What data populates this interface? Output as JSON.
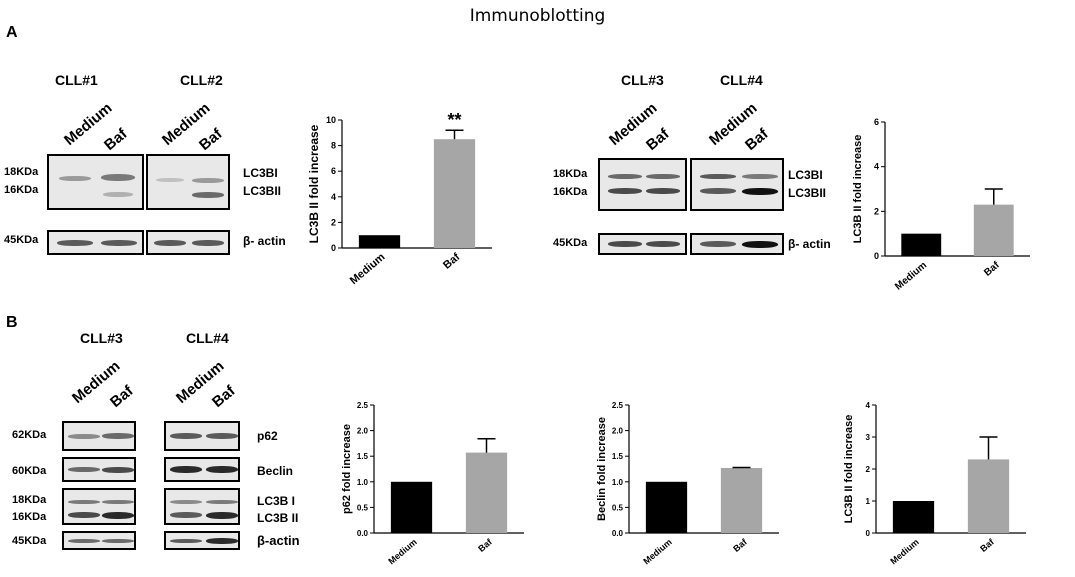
{
  "figure_title": "Immunoblotting",
  "panel_a": {
    "letter": "A",
    "blot_1": {
      "samples": [
        "CLL#1",
        "CLL#2"
      ],
      "lanes": [
        "Medium",
        "Baf"
      ],
      "kda": [
        "18KDa",
        "16KDa",
        "45KDa"
      ],
      "proteins": [
        "LC3BI",
        "LC3BII",
        "β- actin"
      ]
    },
    "blot_2": {
      "samples": [
        "CLL#3",
        "CLL#4"
      ],
      "lanes": [
        "Medium",
        "Baf"
      ],
      "kda": [
        "18KDa",
        "16KDa",
        "45KDa"
      ],
      "proteins": [
        "LC3BI",
        "LC3BII",
        "β- actin"
      ]
    }
  },
  "panel_b": {
    "letter": "B",
    "blot": {
      "samples": [
        "CLL#3",
        "CLL#4"
      ],
      "lanes": [
        "Medium",
        "Baf"
      ],
      "kda": [
        "62KDa",
        "60KDa",
        "18KDa",
        "16KDa",
        "45KDa"
      ],
      "proteins": [
        "p62",
        "Beclin",
        "LC3B I",
        "LC3B II",
        "β-actin"
      ]
    }
  },
  "colors": {
    "medium": "#000000",
    "baf": "#a6a6a6"
  },
  "chart_data": [
    {
      "type": "bar",
      "categories": [
        "Medium",
        "Baf"
      ],
      "values": [
        1.0,
        8.5
      ],
      "errors": [
        0,
        0.7
      ],
      "ylabel": "LC3B II fold increase",
      "ylim": [
        0,
        10
      ],
      "yticks": [
        0,
        2,
        4,
        6,
        8,
        10
      ],
      "annotations": [
        {
          "category": "Baf",
          "text": "**"
        }
      ]
    },
    {
      "type": "bar",
      "categories": [
        "Medium",
        "Baf"
      ],
      "values": [
        1.0,
        2.3
      ],
      "errors": [
        0,
        0.7
      ],
      "ylabel": "LC3B II fold increase",
      "ylim": [
        0,
        6
      ],
      "yticks": [
        0,
        2,
        4,
        6
      ]
    },
    {
      "type": "bar",
      "categories": [
        "Medium",
        "Baf"
      ],
      "values": [
        1.0,
        1.57
      ],
      "errors": [
        0,
        0.27
      ],
      "ylabel": "p62 fold increase",
      "ylim": [
        0,
        2.5
      ],
      "yticks": [
        0.0,
        0.5,
        1.0,
        1.5,
        2.0,
        2.5
      ]
    },
    {
      "type": "bar",
      "categories": [
        "Medium",
        "Baf"
      ],
      "values": [
        1.0,
        1.27
      ],
      "errors": [
        0,
        0.01
      ],
      "ylabel": "Beclin fold increase",
      "ylim": [
        0,
        2.5
      ],
      "yticks": [
        0.0,
        0.5,
        1.0,
        1.5,
        2.0,
        2.5
      ]
    },
    {
      "type": "bar",
      "categories": [
        "Medium",
        "Baf"
      ],
      "values": [
        1.0,
        2.3
      ],
      "errors": [
        0,
        0.7
      ],
      "ylabel": "LC3B II fold increase",
      "ylim": [
        0,
        4
      ],
      "yticks": [
        0,
        1,
        2,
        3,
        4
      ]
    }
  ]
}
